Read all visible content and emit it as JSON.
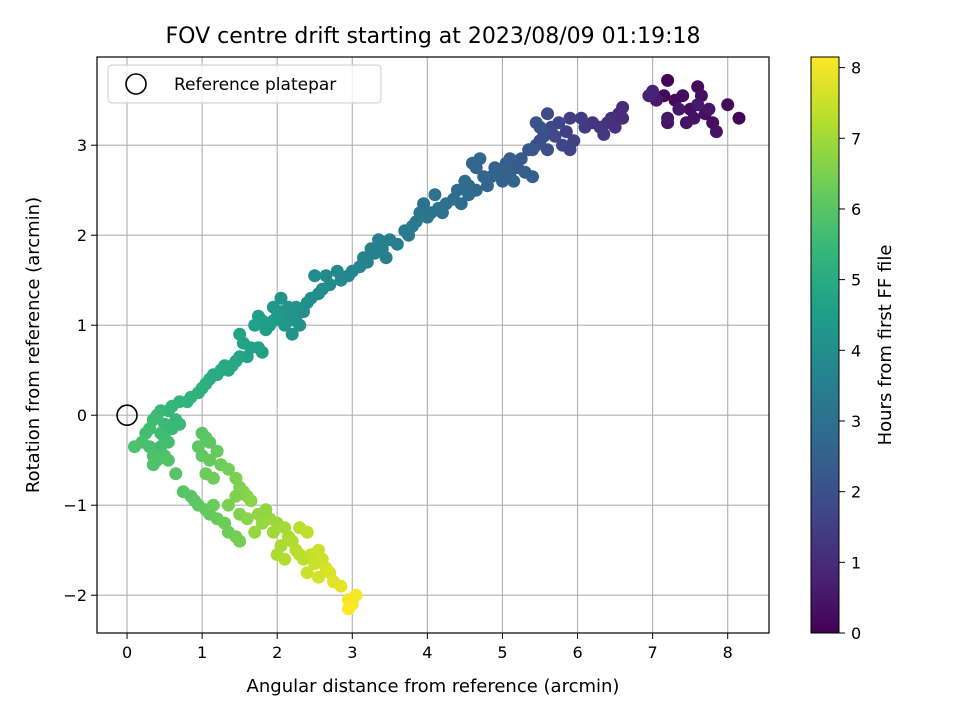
{
  "chart_data": {
    "type": "scatter",
    "title": "FOV centre drift starting at 2023/08/09 01:19:18",
    "xlabel": "Angular distance from reference (arcmin)",
    "ylabel": "Rotation from reference (arcmin)",
    "xlim": [
      -0.4,
      8.55
    ],
    "ylim": [
      -2.42,
      3.98
    ],
    "xticks": [
      0,
      1,
      2,
      3,
      4,
      5,
      6,
      7,
      8
    ],
    "yticks": [
      -2,
      -1,
      0,
      1,
      2,
      3
    ],
    "grid": true,
    "legend": {
      "location": "upper-left",
      "entries": [
        "Reference platepar"
      ]
    },
    "reference_point": {
      "name": "Reference platepar",
      "x": 0,
      "y": 0
    },
    "colorbar": {
      "label": "Hours from first FF file",
      "colormap": "viridis",
      "range": [
        0,
        8.15
      ],
      "ticks": [
        0,
        1,
        2,
        3,
        4,
        5,
        6,
        7,
        8
      ]
    },
    "series": [
      {
        "points": [
          [
            7.2,
            3.72,
            0.1
          ],
          [
            7.15,
            3.55,
            0.15
          ],
          [
            7.3,
            3.5,
            0.2
          ],
          [
            7.4,
            3.55,
            0.25
          ],
          [
            7.6,
            3.65,
            0.2
          ],
          [
            7.65,
            3.55,
            0.3
          ],
          [
            7.5,
            3.4,
            0.3
          ],
          [
            7.7,
            3.35,
            0.35
          ],
          [
            7.8,
            3.25,
            0.3
          ],
          [
            7.55,
            3.3,
            0.4
          ],
          [
            7.45,
            3.25,
            0.45
          ],
          [
            7.2,
            3.25,
            0.4
          ],
          [
            7.2,
            3.3,
            0.5
          ],
          [
            8.0,
            3.45,
            0.2
          ],
          [
            8.15,
            3.3,
            0.1
          ],
          [
            7.85,
            3.15,
            0.4
          ],
          [
            7.35,
            3.4,
            0.5
          ],
          [
            7.05,
            3.5,
            0.6
          ],
          [
            6.95,
            3.55,
            0.75
          ],
          [
            7.0,
            3.6,
            0.8
          ],
          [
            7.75,
            3.4,
            0.5
          ],
          [
            7.6,
            3.45,
            0.55
          ],
          [
            6.6,
            3.42,
            1.0
          ],
          [
            6.55,
            3.35,
            1.05
          ],
          [
            6.45,
            3.3,
            1.1
          ],
          [
            6.4,
            3.25,
            1.2
          ],
          [
            6.3,
            3.2,
            1.25
          ],
          [
            6.2,
            3.25,
            1.3
          ],
          [
            6.1,
            3.2,
            1.4
          ],
          [
            6.35,
            3.12,
            1.35
          ],
          [
            6.05,
            3.3,
            1.45
          ],
          [
            5.9,
            3.3,
            1.5
          ],
          [
            6.5,
            3.2,
            1.15
          ],
          [
            6.6,
            3.3,
            1.0
          ],
          [
            5.85,
            3.15,
            1.55
          ],
          [
            5.95,
            3.05,
            1.6
          ],
          [
            5.8,
            3.0,
            1.7
          ],
          [
            5.7,
            3.1,
            1.75
          ],
          [
            5.65,
            3.2,
            1.8
          ],
          [
            5.75,
            3.25,
            1.7
          ],
          [
            5.6,
            3.35,
            1.85
          ],
          [
            5.55,
            3.1,
            1.9
          ],
          [
            5.5,
            3.05,
            1.95
          ],
          [
            5.45,
            3.0,
            2.0
          ],
          [
            5.6,
            2.95,
            1.9
          ],
          [
            5.55,
            3.15,
            2.0
          ],
          [
            5.5,
            3.2,
            2.05
          ],
          [
            5.45,
            3.25,
            2.1
          ],
          [
            5.4,
            2.95,
            2.2
          ],
          [
            5.9,
            2.95,
            1.65
          ],
          [
            5.35,
            2.95,
            2.2
          ],
          [
            5.25,
            2.85,
            2.3
          ],
          [
            5.1,
            2.85,
            2.4
          ],
          [
            5.05,
            2.8,
            2.45
          ],
          [
            5.2,
            2.75,
            2.35
          ],
          [
            4.95,
            2.7,
            2.5
          ],
          [
            4.85,
            2.65,
            2.6
          ],
          [
            4.75,
            2.65,
            2.65
          ],
          [
            4.65,
            2.75,
            2.7
          ],
          [
            4.6,
            2.8,
            2.75
          ],
          [
            4.7,
            2.85,
            2.75
          ],
          [
            4.9,
            2.75,
            2.55
          ],
          [
            5.1,
            2.65,
            2.55
          ],
          [
            5.05,
            2.75,
            2.5
          ],
          [
            5.3,
            2.7,
            2.4
          ],
          [
            5.4,
            2.65,
            2.45
          ],
          [
            5.15,
            2.6,
            2.6
          ],
          [
            5.0,
            2.6,
            2.55
          ],
          [
            4.55,
            2.55,
            2.8
          ],
          [
            4.5,
            2.6,
            2.85
          ],
          [
            4.4,
            2.5,
            2.9
          ],
          [
            4.35,
            2.4,
            2.95
          ],
          [
            4.25,
            2.35,
            3.0
          ],
          [
            4.15,
            2.3,
            3.05
          ],
          [
            4.05,
            2.25,
            3.1
          ],
          [
            4.0,
            2.2,
            3.15
          ],
          [
            3.95,
            2.35,
            3.15
          ],
          [
            3.9,
            2.25,
            3.2
          ],
          [
            3.85,
            2.15,
            3.25
          ],
          [
            4.45,
            2.35,
            2.9
          ],
          [
            4.65,
            2.5,
            2.8
          ],
          [
            4.8,
            2.55,
            2.7
          ],
          [
            4.55,
            2.45,
            2.85
          ],
          [
            4.2,
            2.25,
            3.05
          ],
          [
            4.1,
            2.45,
            3.05
          ],
          [
            3.8,
            2.1,
            3.3
          ],
          [
            3.75,
            2.0,
            3.35
          ],
          [
            3.7,
            2.05,
            3.4
          ],
          [
            3.6,
            1.9,
            3.45
          ],
          [
            3.5,
            1.95,
            3.5
          ],
          [
            3.4,
            1.85,
            3.55
          ],
          [
            3.3,
            1.8,
            3.6
          ],
          [
            3.25,
            1.85,
            3.6
          ],
          [
            3.35,
            1.95,
            3.55
          ],
          [
            3.15,
            1.75,
            3.65
          ],
          [
            3.1,
            1.65,
            3.7
          ],
          [
            3.0,
            1.6,
            3.75
          ],
          [
            2.95,
            1.55,
            3.8
          ],
          [
            2.85,
            1.5,
            3.85
          ],
          [
            2.8,
            1.6,
            3.85
          ],
          [
            2.7,
            1.45,
            3.9
          ],
          [
            2.6,
            1.4,
            3.95
          ],
          [
            2.55,
            1.35,
            4.0
          ],
          [
            2.65,
            1.55,
            3.9
          ],
          [
            2.5,
            1.55,
            3.95
          ],
          [
            2.45,
            1.3,
            4.0
          ],
          [
            3.2,
            1.7,
            3.65
          ],
          [
            3.45,
            1.75,
            3.55
          ],
          [
            2.4,
            1.25,
            4.05
          ],
          [
            2.35,
            1.15,
            4.1
          ],
          [
            2.25,
            1.2,
            4.15
          ],
          [
            2.2,
            1.1,
            4.2
          ],
          [
            2.15,
            1.05,
            4.25
          ],
          [
            2.1,
            1.0,
            4.3
          ],
          [
            2.05,
            1.15,
            4.3
          ],
          [
            2.0,
            1.1,
            4.35
          ],
          [
            1.95,
            1.05,
            4.4
          ],
          [
            1.9,
            1.0,
            4.45
          ],
          [
            1.85,
            0.95,
            4.5
          ],
          [
            1.8,
            1.05,
            4.5
          ],
          [
            1.75,
            1.1,
            4.55
          ],
          [
            2.2,
            0.9,
            4.2
          ],
          [
            2.3,
            1.0,
            4.15
          ],
          [
            2.15,
            1.2,
            4.2
          ],
          [
            2.05,
            1.3,
            4.25
          ],
          [
            1.95,
            1.2,
            4.35
          ],
          [
            2.25,
            1.05,
            4.15
          ],
          [
            1.7,
            1.0,
            4.6
          ],
          [
            1.65,
            0.75,
            4.65
          ],
          [
            1.55,
            0.8,
            4.7
          ],
          [
            1.6,
            0.65,
            4.7
          ],
          [
            1.5,
            0.65,
            4.75
          ],
          [
            1.45,
            0.6,
            4.8
          ],
          [
            1.4,
            0.55,
            4.85
          ],
          [
            1.3,
            0.55,
            4.9
          ],
          [
            1.25,
            0.5,
            4.95
          ],
          [
            1.2,
            0.45,
            5.0
          ],
          [
            1.1,
            0.4,
            5.05
          ],
          [
            1.05,
            0.35,
            5.1
          ],
          [
            1.0,
            0.3,
            5.15
          ],
          [
            0.95,
            0.25,
            5.2
          ],
          [
            1.8,
            0.7,
            4.6
          ],
          [
            1.75,
            0.75,
            4.65
          ],
          [
            1.5,
            0.9,
            4.75
          ],
          [
            1.35,
            0.5,
            4.9
          ],
          [
            1.15,
            0.45,
            5.0
          ],
          [
            0.85,
            0.2,
            5.25
          ],
          [
            0.8,
            0.15,
            5.3
          ],
          [
            0.7,
            0.15,
            5.35
          ],
          [
            0.6,
            0.1,
            5.4
          ],
          [
            0.55,
            0.05,
            5.45
          ],
          [
            0.45,
            0.05,
            5.5
          ],
          [
            0.4,
            0.0,
            5.55
          ],
          [
            0.35,
            -0.05,
            5.6
          ],
          [
            0.5,
            -0.1,
            5.55
          ],
          [
            0.6,
            -0.15,
            5.5
          ],
          [
            0.65,
            -0.05,
            5.45
          ],
          [
            0.3,
            -0.15,
            5.65
          ],
          [
            0.25,
            -0.2,
            5.7
          ],
          [
            0.2,
            -0.3,
            5.75
          ],
          [
            0.1,
            -0.35,
            5.8
          ],
          [
            0.3,
            -0.35,
            5.75
          ],
          [
            0.45,
            -0.35,
            5.7
          ],
          [
            0.5,
            -0.25,
            5.65
          ],
          [
            0.55,
            -0.3,
            5.7
          ],
          [
            0.35,
            -0.45,
            5.8
          ],
          [
            0.4,
            -0.5,
            5.85
          ],
          [
            0.5,
            -0.45,
            5.85
          ],
          [
            0.35,
            -0.55,
            5.9
          ],
          [
            0.55,
            -0.5,
            5.9
          ],
          [
            0.65,
            -0.65,
            5.95
          ],
          [
            0.7,
            -0.1,
            5.5
          ],
          [
            0.45,
            -0.2,
            5.6
          ],
          [
            1.0,
            -0.2,
            6.0
          ],
          [
            1.05,
            -0.25,
            6.05
          ],
          [
            1.1,
            -0.3,
            6.1
          ],
          [
            0.95,
            -0.35,
            6.1
          ],
          [
            1.0,
            -0.45,
            6.15
          ],
          [
            1.1,
            -0.5,
            6.2
          ],
          [
            1.2,
            -0.4,
            6.2
          ],
          [
            1.25,
            -0.55,
            6.3
          ],
          [
            0.85,
            -0.9,
            6.0
          ],
          [
            0.9,
            -0.95,
            6.05
          ],
          [
            0.95,
            -1.0,
            6.1
          ],
          [
            1.05,
            -1.05,
            6.15
          ],
          [
            1.1,
            -1.1,
            6.2
          ],
          [
            1.2,
            -1.15,
            6.25
          ],
          [
            1.3,
            -1.2,
            6.3
          ],
          [
            1.35,
            -1.3,
            6.35
          ],
          [
            1.45,
            -1.35,
            6.4
          ],
          [
            1.5,
            -1.4,
            6.45
          ],
          [
            0.75,
            -0.85,
            6.0
          ],
          [
            1.15,
            -1.0,
            6.25
          ],
          [
            1.05,
            -0.65,
            6.3
          ],
          [
            1.15,
            -0.7,
            6.35
          ],
          [
            1.35,
            -0.6,
            6.4
          ],
          [
            1.45,
            -0.7,
            6.5
          ],
          [
            1.5,
            -0.8,
            6.55
          ],
          [
            1.55,
            -0.85,
            6.6
          ],
          [
            1.6,
            -0.9,
            6.65
          ],
          [
            1.65,
            -0.95,
            6.7
          ],
          [
            1.45,
            -0.9,
            6.55
          ],
          [
            1.35,
            -1.0,
            6.5
          ],
          [
            1.5,
            -1.1,
            6.6
          ],
          [
            1.6,
            -1.15,
            6.7
          ],
          [
            1.75,
            -1.1,
            6.8
          ],
          [
            1.8,
            -1.2,
            6.85
          ],
          [
            1.9,
            -1.15,
            6.9
          ],
          [
            2.0,
            -1.2,
            6.95
          ],
          [
            1.95,
            -1.3,
            7.0
          ],
          [
            2.1,
            -1.25,
            7.05
          ],
          [
            2.15,
            -1.35,
            7.1
          ],
          [
            2.2,
            -1.4,
            7.15
          ],
          [
            2.05,
            -1.45,
            7.1
          ],
          [
            2.0,
            -1.55,
            7.15
          ],
          [
            2.1,
            -1.6,
            7.2
          ],
          [
            2.25,
            -1.5,
            7.25
          ],
          [
            2.3,
            -1.55,
            7.3
          ],
          [
            2.35,
            -1.6,
            7.35
          ],
          [
            2.45,
            -1.55,
            7.4
          ],
          [
            2.5,
            -1.65,
            7.5
          ],
          [
            2.4,
            -1.75,
            7.5
          ],
          [
            2.6,
            -1.6,
            7.55
          ],
          [
            2.55,
            -1.5,
            7.5
          ],
          [
            2.65,
            -1.7,
            7.6
          ],
          [
            2.7,
            -1.75,
            7.7
          ],
          [
            2.75,
            -1.85,
            7.8
          ],
          [
            2.85,
            -1.9,
            7.85
          ],
          [
            2.95,
            -2.05,
            8.0
          ],
          [
            3.0,
            -2.1,
            8.1
          ],
          [
            2.95,
            -2.15,
            8.15
          ],
          [
            3.05,
            -2.0,
            8.05
          ],
          [
            2.3,
            -1.25,
            7.3
          ],
          [
            2.4,
            -1.3,
            7.35
          ],
          [
            1.7,
            -1.3,
            6.9
          ],
          [
            1.85,
            -1.05,
            6.8
          ],
          [
            2.55,
            -1.8,
            7.6
          ]
        ]
      }
    ]
  }
}
